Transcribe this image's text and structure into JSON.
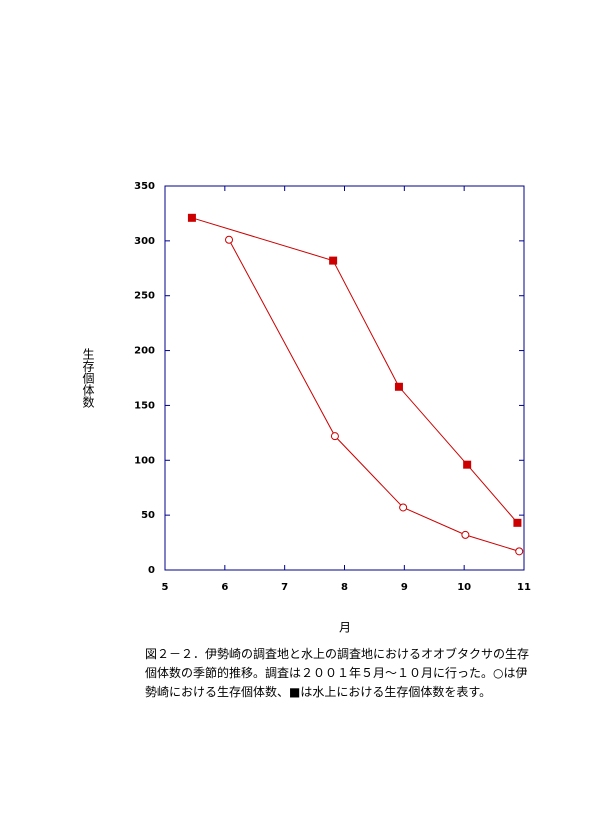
{
  "chart_data": {
    "type": "line",
    "ylabel": "生存個体数",
    "xlabel": "月",
    "xlim": [
      5,
      11
    ],
    "xticks": [
      5,
      6,
      7,
      8,
      9,
      10,
      11
    ],
    "ylim": [
      0,
      350
    ],
    "yticks": [
      0,
      50,
      100,
      150,
      200,
      250,
      300,
      350
    ],
    "axis_color": "#00008b",
    "series": [
      {
        "marker": "square",
        "color": "#cc0000",
        "x": [
          5.45,
          7.81,
          8.91,
          10.05,
          10.89
        ],
        "values": [
          321,
          282,
          167,
          96,
          43
        ]
      },
      {
        "marker": "circle",
        "color": "#cc0000",
        "x": [
          6.07,
          7.84,
          8.98,
          10.02,
          10.92
        ],
        "values": [
          301,
          122,
          57,
          32,
          17
        ]
      }
    ]
  },
  "caption": "図２－２．伊勢崎の調査地と水上の調査地におけるオオブタクサの生存個体数の季節的推移。調査は２００１年５月～１０月に行った。○は伊勢崎における生存個体数、■は水上における生存個体数を表す。"
}
